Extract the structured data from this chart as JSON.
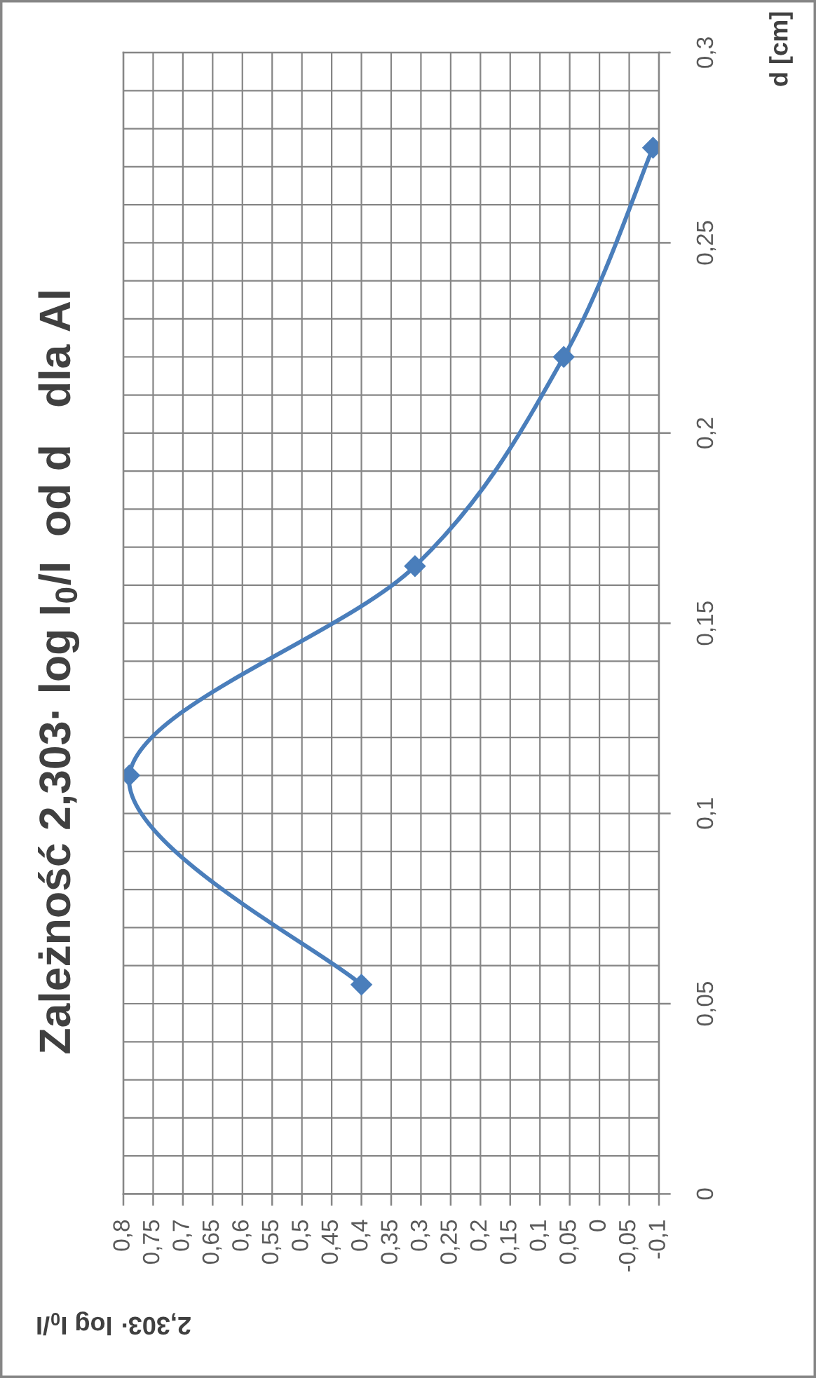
{
  "chart_data": {
    "type": "line",
    "title": "Zależność 2,303· log I$_{0}$/I  od d   dla Al",
    "xlabel": "2,303· log I$_{0}$/I",
    "ylabel": "d [cm]",
    "x": [
      0.4,
      0.79,
      0.31,
      0.06,
      -0.09
    ],
    "series": [
      {
        "color": "#4a7ebb",
        "values": [
          0.055,
          0.11,
          0.165,
          0.22,
          0.275
        ]
      }
    ],
    "xlim": [
      0.8,
      -0.1
    ],
    "xticks": [
      {
        "value": 0.8,
        "label": "0,8"
      },
      {
        "value": 0.75,
        "label": "0,75"
      },
      {
        "value": 0.7,
        "label": "0,7"
      },
      {
        "value": 0.65,
        "label": "0,65"
      },
      {
        "value": 0.6,
        "label": "0,6"
      },
      {
        "value": 0.55,
        "label": "0,55"
      },
      {
        "value": 0.5,
        "label": "0,5"
      },
      {
        "value": 0.45,
        "label": "0,45"
      },
      {
        "value": 0.4,
        "label": "0,4"
      },
      {
        "value": 0.35,
        "label": "0,35"
      },
      {
        "value": 0.3,
        "label": "0,3"
      },
      {
        "value": 0.25,
        "label": "0,25"
      },
      {
        "value": 0.2,
        "label": "0,2"
      },
      {
        "value": 0.15,
        "label": "0,15"
      },
      {
        "value": 0.1,
        "label": "0,1"
      },
      {
        "value": 0.05,
        "label": "0,05"
      },
      0,
      {
        "value": -0.05,
        "label": "-0,05"
      },
      {
        "value": -0.1,
        "label": "-0,1"
      }
    ],
    "ylim": [
      0,
      0.3
    ],
    "yticks": [
      0,
      {
        "value": 0.01,
        "label": null
      },
      {
        "value": 0.02,
        "label": null
      },
      {
        "value": 0.03,
        "label": null
      },
      {
        "value": 0.04,
        "label": null
      },
      {
        "value": 0.05,
        "label": "0,05"
      },
      {
        "value": 0.06,
        "label": null
      },
      {
        "value": 0.07,
        "label": null
      },
      {
        "value": 0.08,
        "label": null
      },
      {
        "value": 0.09,
        "label": null
      },
      {
        "value": 0.1,
        "label": "0,1"
      },
      {
        "value": 0.11,
        "label": null
      },
      {
        "value": 0.12,
        "label": null
      },
      {
        "value": 0.13,
        "label": null
      },
      {
        "value": 0.14,
        "label": null
      },
      {
        "value": 0.15,
        "label": "0,15"
      },
      {
        "value": 0.16,
        "label": null
      },
      {
        "value": 0.17,
        "label": null
      },
      {
        "value": 0.18,
        "label": null
      },
      {
        "value": 0.19,
        "label": null
      },
      {
        "value": 0.2,
        "label": "0,2"
      },
      {
        "value": 0.21,
        "label": null
      },
      {
        "value": 0.22,
        "label": null
      },
      {
        "value": 0.23,
        "label": null
      },
      {
        "value": 0.24,
        "label": null
      },
      {
        "value": 0.25,
        "label": "0,25"
      },
      {
        "value": 0.26,
        "label": null
      },
      {
        "value": 0.27,
        "label": null
      },
      {
        "value": 0.28,
        "label": null
      },
      {
        "value": 0.29,
        "label": null
      },
      {
        "value": 0.3,
        "label": "0,3"
      }
    ],
    "grid": true,
    "marker": "diamond",
    "line_style": "solid"
  }
}
